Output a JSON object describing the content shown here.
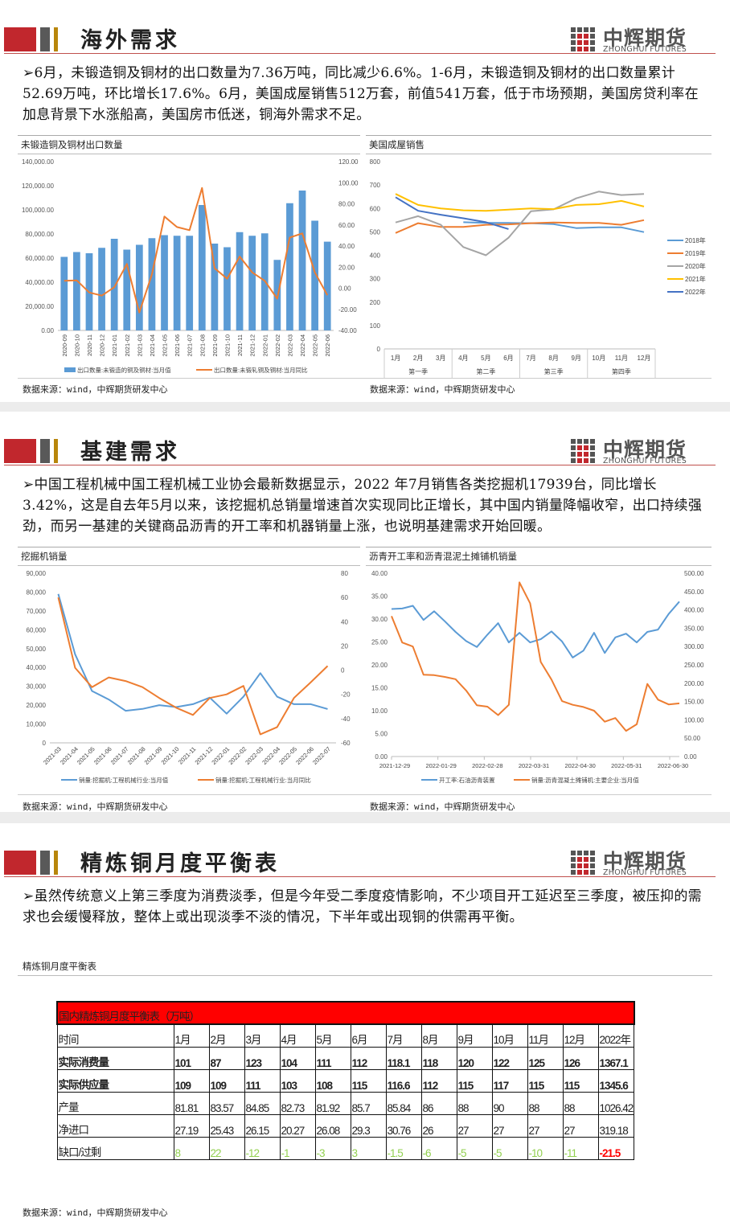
{
  "logo": {
    "cn": "中辉期货",
    "en": "ZHONGHUI FUTURES"
  },
  "colors": {
    "brand_red": "#c1272d",
    "blue": "#5b9bd5",
    "orange": "#ed7d31",
    "gray": "#a5a5a5",
    "yellow": "#ffc000",
    "dark_blue": "#4472c4",
    "green": "#92d050"
  },
  "bullet": "➢",
  "source": "数据来源：wind，中辉期货研发中心",
  "sections": [
    {
      "title": "海外需求",
      "text": "6月，未锻造铜及铜材的出口数量为7.36万吨，同比减少6.6%。1-6月，未锻造铜及铜材的出口数量累计52.69万吨，环比增长17.6%。6月，美国成屋销售512万套，前值541万套，低于市场预期，美国房贷利率在加息背景下水涨船高，美国房市低迷，铜海外需求不足。"
    },
    {
      "title": "基建需求",
      "text": "中国工程机械中国工程机械工业协会最新数据显示，2022 年7月销售各类挖掘机17939台，同比增长3.42%，这是自去年5月以来，该挖掘机总销量增速首次实现同比正增长，其中国内销量降幅收窄，出口持续强劲，而另一基建的关键商品沥青的开工率和机器销量上涨，也说明基建需求开始回暖。"
    },
    {
      "title": "精炼铜月度平衡表",
      "text": "虽然传统意义上第三季度为消费淡季，但是今年受二季度疫情影响，不少项目开工延迟至三季度，被压抑的需求也会缓慢释放，整体上或出现淡季不淡的情况，下半年或出现铜的供需再平衡。"
    }
  ],
  "table": {
    "label": "精炼铜月度平衡表",
    "title": "国内精炼铜月度平衡表（万吨）",
    "rows": [
      {
        "name": "时间",
        "cells": [
          "1月",
          "2月",
          "3月",
          "4月",
          "5月",
          "6月",
          "7月",
          "8月",
          "9月",
          "10月",
          "11月",
          "12月",
          "2022年"
        ]
      },
      {
        "name": "实际消费量",
        "cells": [
          "101",
          "87",
          "123",
          "104",
          "111",
          "112",
          "118.1",
          "118",
          "120",
          "122",
          "125",
          "126",
          "1367.1"
        ]
      },
      {
        "name": "实际供应量",
        "cells": [
          "109",
          "109",
          "111",
          "103",
          "108",
          "115",
          "116.6",
          "112",
          "115",
          "117",
          "115",
          "115",
          "1345.6"
        ]
      },
      {
        "name": "产量",
        "cells": [
          "81.81",
          "83.57",
          "84.85",
          "82.73",
          "81.92",
          "85.7",
          "85.84",
          "86",
          "88",
          "90",
          "88",
          "88",
          "1026.42"
        ]
      },
      {
        "name": "净进口",
        "cells": [
          "27.19",
          "25.43",
          "26.15",
          "20.27",
          "26.08",
          "29.3",
          "30.76",
          "26",
          "27",
          "27",
          "27",
          "27",
          "319.18"
        ]
      },
      {
        "name": "缺口/过剩",
        "cells": [
          "8",
          "22",
          "-12",
          "-1",
          "-3",
          "3",
          "-1.5",
          "-6",
          "-5",
          "-5",
          "-10",
          "-11",
          "-21.5"
        ]
      }
    ]
  },
  "chart_data": [
    {
      "type": "bar+line",
      "title": "未锻造铜及铜材出口数量",
      "categories": [
        "2020-09",
        "2020-10",
        "2020-11",
        "2020-12",
        "2021-01",
        "2021-02",
        "2021-03",
        "2021-04",
        "2021-05",
        "2021-06",
        "2021-07",
        "2021-08",
        "2021-09",
        "2021-10",
        "2021-11",
        "2021-12",
        "2022-01",
        "2022-02",
        "2022-03",
        "2022-04",
        "2022-05",
        "2022-06"
      ],
      "y_left": {
        "min": 0,
        "max": 140000,
        "step": 20000,
        "labels": [
          "0.00",
          "20,000.00",
          "40,000.00",
          "60,000.00",
          "80,000.00",
          "100,000.00",
          "120,000.00",
          "140,000.00"
        ]
      },
      "y_right": {
        "min": -40,
        "max": 120,
        "step": 20,
        "labels": [
          "-40.00",
          "-20.00",
          "0.00",
          "20.00",
          "40.00",
          "60.00",
          "80.00",
          "100.00",
          "120.00"
        ]
      },
      "series": [
        {
          "name": "出口数量:未锻造的铜及铜材:当月值",
          "kind": "bar",
          "axis": "left",
          "color": "#5b9bd5",
          "values": [
            61000,
            65000,
            64000,
            68500,
            76000,
            67000,
            71000,
            76500,
            79000,
            78500,
            78500,
            104000,
            72000,
            69000,
            81500,
            78500,
            80500,
            58500,
            105500,
            116000,
            91000,
            73600
          ]
        },
        {
          "name": "出口数量:未锻轧铜及铜材:当月同比",
          "kind": "line",
          "axis": "right",
          "color": "#ed7d31",
          "values": [
            7,
            7.5,
            -4,
            -7,
            1,
            23,
            -23,
            13,
            68,
            58,
            55,
            95,
            19,
            9,
            30,
            15,
            7,
            -10,
            48,
            52,
            15,
            -6.6
          ]
        }
      ],
      "legend": "bottom",
      "grid": false
    },
    {
      "type": "line",
      "title": "美国成屋销售",
      "categories": [
        "1月",
        "2月",
        "3月",
        "4月",
        "5月",
        "6月",
        "7月",
        "8月",
        "9月",
        "10月",
        "11月",
        "12月"
      ],
      "groups": [
        "第一季",
        "第二季",
        "第三季",
        "第四季"
      ],
      "y_left": {
        "min": 0,
        "max": 800,
        "step": 100,
        "labels": [
          "0",
          "100",
          "200",
          "300",
          "400",
          "500",
          "600",
          "700",
          "800"
        ]
      },
      "series": [
        {
          "name": "2018年",
          "kind": "line",
          "axis": "left",
          "color": "#5b9bd5",
          "values": [
            null,
            null,
            null,
            541,
            538,
            538,
            537,
            533,
            516,
            519,
            519,
            499
          ]
        },
        {
          "name": "2019年",
          "kind": "line",
          "axis": "left",
          "color": "#ed7d31",
          "values": [
            495,
            537,
            521,
            521,
            530,
            532,
            537,
            540,
            538,
            538,
            530,
            550
          ]
        },
        {
          "name": "2020年",
          "kind": "line",
          "axis": "left",
          "color": "#a5a5a5",
          "values": [
            540,
            567,
            530,
            435,
            400,
            475,
            588,
            596,
            643,
            672,
            657,
            662
          ]
        },
        {
          "name": "2021年",
          "kind": "line",
          "axis": "left",
          "color": "#ffc000",
          "values": [
            662,
            615,
            600,
            592,
            590,
            595,
            600,
            597,
            615,
            618,
            632,
            608
          ]
        },
        {
          "name": "2022年",
          "kind": "line",
          "axis": "left",
          "color": "#4472c4",
          "values": [
            648,
            590,
            573,
            558,
            541,
            512,
            null,
            null,
            null,
            null,
            null,
            null
          ]
        }
      ],
      "legend": "right",
      "grid": false
    },
    {
      "type": "line",
      "title": "挖掘机销量",
      "categories": [
        "2021-03",
        "2021-04",
        "2021-05",
        "2021-06",
        "2021-07",
        "2021-08",
        "2021-09",
        "2021-10",
        "2021-11",
        "2021-12",
        "2022-01",
        "2022-02",
        "2022-03",
        "2022-04",
        "2022-05",
        "2022-06",
        "2022-07"
      ],
      "y_left": {
        "min": 0,
        "max": 90000,
        "step": 10000,
        "labels": [
          "0",
          "10,000",
          "20,000",
          "30,000",
          "40,000",
          "50,000",
          "60,000",
          "70,000",
          "80,000",
          "90,000"
        ]
      },
      "y_right": {
        "min": -60,
        "max": 80,
        "step": 20,
        "labels": [
          "-60",
          "-40",
          "-20",
          "0",
          "20",
          "40",
          "60",
          "80"
        ]
      },
      "series": [
        {
          "name": "销量:挖掘机:工程机械行业:当月值",
          "kind": "line",
          "axis": "left",
          "color": "#5b9bd5",
          "values": [
            79000,
            47000,
            27500,
            23000,
            17000,
            18000,
            20000,
            19000,
            20500,
            24000,
            15500,
            24500,
            37000,
            24500,
            20500,
            20500,
            17939
          ]
        },
        {
          "name": "销量:挖掘机:工程机械行业:当月同比",
          "kind": "line",
          "axis": "right",
          "color": "#ed7d31",
          "values": [
            60,
            2,
            -14,
            -6,
            -9,
            -14,
            -23,
            -31,
            -37,
            -23,
            -20,
            -13,
            -53,
            -47,
            -23,
            -10,
            3.42
          ]
        }
      ],
      "legend": "bottom",
      "grid": false
    },
    {
      "type": "line",
      "title": "沥青开工率和沥青混泥土摊铺机销量",
      "x_tick_labels": [
        "2021-12-29",
        "2022-01-29",
        "2022-02-28",
        "2022-03-31",
        "2022-04-30",
        "2022-05-31",
        "2022-06-30"
      ],
      "y_left": {
        "min": 0,
        "max": 40,
        "step": 5,
        "labels": [
          "0.00",
          "5.00",
          "10.00",
          "15.00",
          "20.00",
          "25.00",
          "30.00",
          "35.00",
          "40.00"
        ]
      },
      "y_right": {
        "min": 0,
        "max": 500,
        "step": 50,
        "labels": [
          "0.00",
          "50.00",
          "100.00",
          "150.00",
          "200.00",
          "250.00",
          "300.00",
          "350.00",
          "400.00",
          "450.00",
          "500.00"
        ]
      },
      "series": [
        {
          "name": "开工率:石油沥青装置",
          "kind": "line",
          "axis": "left",
          "color": "#5b9bd5",
          "values": [
            32.2,
            32.3,
            32.9,
            29.8,
            31.7,
            29.5,
            27.2,
            25.2,
            23.9,
            26.6,
            29.1,
            24.9,
            27.0,
            24.9,
            25.6,
            27.3,
            25.1,
            21.6,
            23.1,
            27.0,
            22.6,
            26.0,
            26.8,
            24.9,
            27.2,
            27.7,
            31.1,
            33.8
          ]
        },
        {
          "name": "销量:沥青混凝土摊铺机:主要企业:当月值",
          "kind": "line",
          "axis": "right",
          "color": "#ed7d31",
          "values": [
            383,
            311,
            300,
            223,
            222,
            217,
            211,
            180,
            140,
            136,
            113,
            141,
            475,
            418,
            258,
            210,
            151,
            141,
            135,
            125,
            95,
            105,
            70,
            88,
            198,
            155,
            142,
            145
          ]
        }
      ],
      "legend": "bottom",
      "grid": false
    }
  ]
}
